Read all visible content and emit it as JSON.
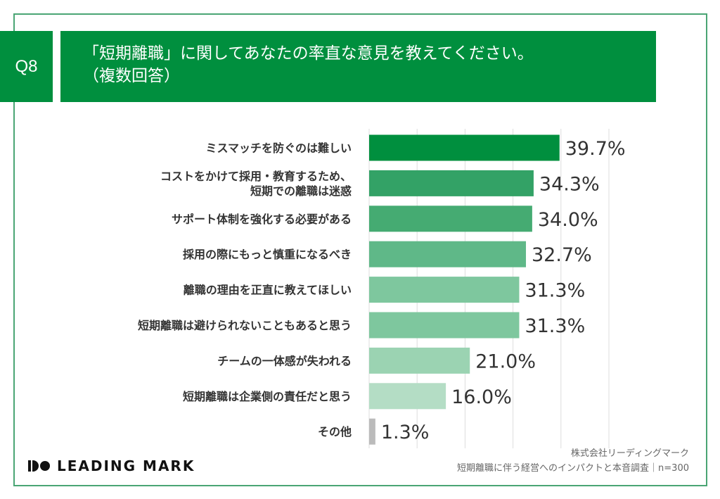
{
  "header": {
    "question_no": "Q8",
    "title_line1": "「短期離職」に関してあなたの率直な意見を教えてください。",
    "title_line2": "（複数回答）"
  },
  "chart_data": {
    "type": "bar",
    "orientation": "horizontal",
    "categories": [
      [
        "ミスマッチを防ぐのは難しい"
      ],
      [
        "コストをかけて採用・教育するため、",
        "短期での離職は迷惑"
      ],
      [
        "サポート体制を強化する必要がある"
      ],
      [
        "採用の際にもっと慎重になるべき"
      ],
      [
        "離職の理由を正直に教えてほしい"
      ],
      [
        "短期離職は避けられないこともあると思う"
      ],
      [
        "チームの一体感が失われる"
      ],
      [
        "短期離職は企業側の責任だと思う"
      ],
      [
        "その他"
      ]
    ],
    "values": [
      39.7,
      34.3,
      34.0,
      32.7,
      31.3,
      31.3,
      21.0,
      16.0,
      1.3
    ],
    "value_labels": [
      "39.7%",
      "34.3%",
      "34.0%",
      "32.7%",
      "31.3%",
      "31.3%",
      "21.0%",
      "16.0%",
      "1.3%"
    ],
    "colors": [
      "#008f3e",
      "#33a266",
      "#45ab72",
      "#5fb888",
      "#7ec79e",
      "#7ec79e",
      "#9bd3b2",
      "#b4ddc5",
      "#bbbbbb"
    ],
    "xlim": [
      0,
      50
    ],
    "grid": true,
    "grid_step": 10
  },
  "footer": {
    "logo": "LEADING MARK",
    "company": "株式会社リーディングマーク",
    "survey": "短期離職に伴う経営へのインパクトと本音調査｜n=300"
  }
}
